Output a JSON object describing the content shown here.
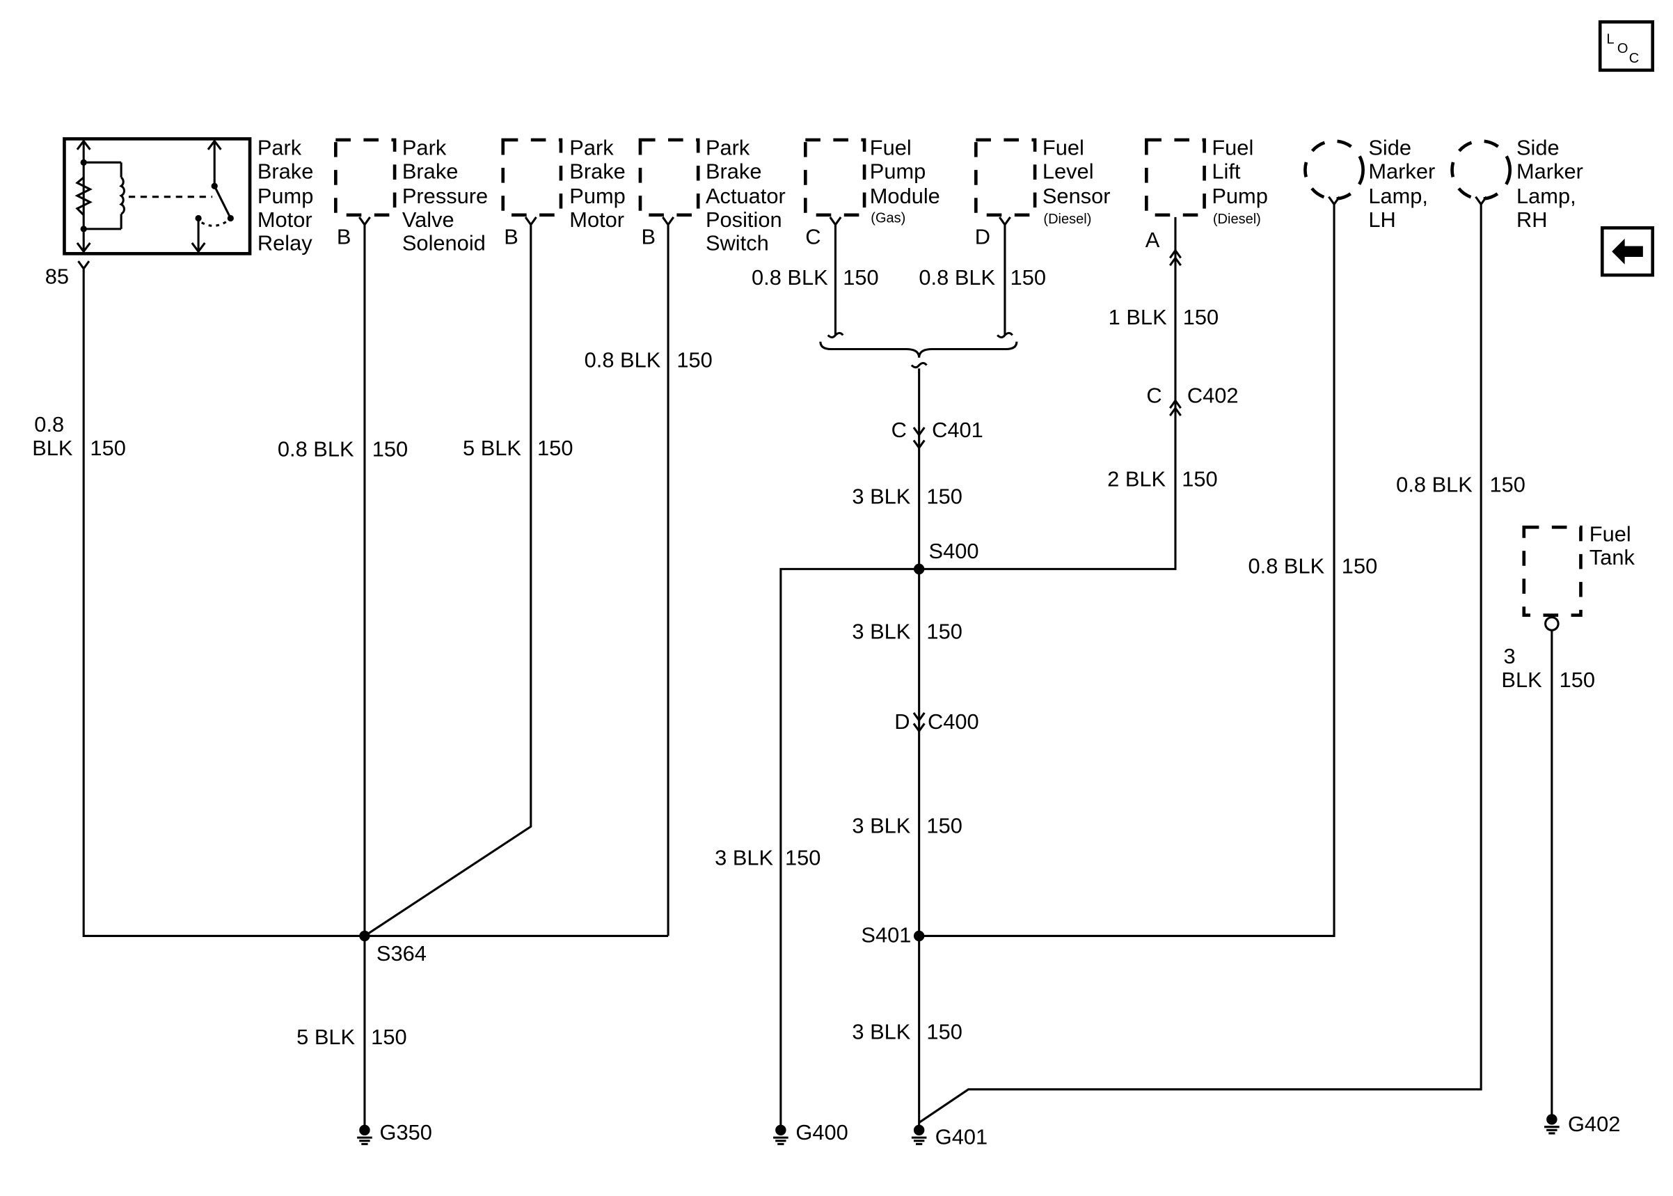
{
  "icons": {
    "location": "loc-icon",
    "back": "back-arrow-icon"
  },
  "loc_letters": [
    "L",
    "O",
    "C"
  ],
  "components": {
    "relay": [
      "Park",
      "Brake",
      "Pump",
      "Motor",
      "Relay"
    ],
    "pressure_solenoid": [
      "Park",
      "Brake",
      "Pressure",
      "Valve",
      "Solenoid"
    ],
    "pump_motor": [
      "Park",
      "Brake",
      "Pump",
      "Motor"
    ],
    "actuator_switch": [
      "Park",
      "Brake",
      "Actuator",
      "Position",
      "Switch"
    ],
    "fuel_pump_module": [
      "Fuel",
      "Pump",
      "Module",
      "(Gas)"
    ],
    "fuel_level_sensor": [
      "Fuel",
      "Level",
      "Sensor",
      "(Diesel)"
    ],
    "fuel_lift_pump": [
      "Fuel",
      "Lift",
      "Pump",
      "(Diesel)"
    ],
    "side_marker_lh": [
      "Side",
      "Marker",
      "Lamp,",
      "LH"
    ],
    "side_marker_rh": [
      "Side",
      "Marker",
      "Lamp,",
      "RH"
    ],
    "fuel_tank": [
      "Fuel",
      "Tank"
    ]
  },
  "pins": {
    "relay": "85",
    "solenoid": "B",
    "pump_motor": "B",
    "switch": "B",
    "fuel_pump": "C",
    "level_sensor": "D",
    "lift_pump": "A"
  },
  "wires": {
    "relay": [
      "0.8",
      "BLK",
      "150"
    ],
    "solenoid": [
      "0.8 BLK",
      "150"
    ],
    "pump_motor": [
      "5 BLK",
      "150"
    ],
    "switch": [
      "0.8 BLK",
      "150"
    ],
    "fuel_pump": [
      "0.8 BLK",
      "150"
    ],
    "level_sensor": [
      "0.8 BLK",
      "150"
    ],
    "lift_pump_top": [
      "1 BLK",
      "150"
    ],
    "lift_pump_bottom": [
      "2 BLK",
      "150"
    ],
    "c401_s400": [
      "3 BLK",
      "150"
    ],
    "s400_c400": [
      "3 BLK",
      "150"
    ],
    "c400_s401": [
      "3 BLK",
      "150"
    ],
    "s401_g401": [
      "3 BLK",
      "150"
    ],
    "g400": [
      "3 BLK",
      "150"
    ],
    "lh_lamp": [
      "0.8 BLK",
      "150"
    ],
    "rh_lamp": [
      "0.8 BLK",
      "150"
    ],
    "fuel_tank": [
      "3",
      "BLK",
      "150"
    ],
    "s364_g350": [
      "5 BLK",
      "150"
    ]
  },
  "connectors": {
    "c401": {
      "pin": "C",
      "name": "C401"
    },
    "c402": {
      "pin": "C",
      "name": "C402"
    },
    "c400": {
      "pin": "D",
      "name": "C400"
    }
  },
  "splices": {
    "s364": "S364",
    "s400": "S400",
    "s401": "S401"
  },
  "grounds": {
    "g350": "G350",
    "g400": "G400",
    "g401": "G401",
    "g402": "G402"
  }
}
